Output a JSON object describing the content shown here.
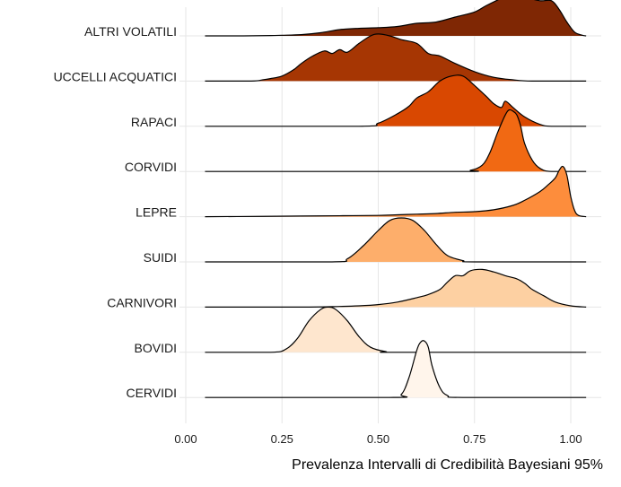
{
  "chart_data": {
    "type": "ridgeline",
    "xlabel": "Prevalenza Intervalli di Credibilità Bayesiani 95%",
    "xlim": [
      0,
      1.05
    ],
    "x_ticks": [
      0,
      0.25,
      0.5,
      0.75,
      1.0
    ],
    "x_tick_labels": [
      "0.00",
      "0.25",
      "0.50",
      "0.75",
      "1.00"
    ],
    "grid": true,
    "legend": "none",
    "x_range": [
      0.05,
      1.04
    ],
    "categories": [
      "ALTRI VOLATILI",
      "UCCELLI ACQUATICI",
      "RAPACI",
      "CORVIDI",
      "LEPRE",
      "SUIDI",
      "CARNIVORI",
      "BOVIDI",
      "CERVIDI"
    ],
    "series": [
      {
        "name": "ALTRI VOLATILI",
        "color": "#7f2704",
        "density": [
          [
            0.05,
            0
          ],
          [
            0.15,
            0
          ],
          [
            0.22,
            0.005
          ],
          [
            0.25,
            0.01
          ],
          [
            0.3,
            0.02
          ],
          [
            0.35,
            0.05
          ],
          [
            0.4,
            0.1
          ],
          [
            0.45,
            0.12
          ],
          [
            0.5,
            0.13
          ],
          [
            0.55,
            0.15
          ],
          [
            0.6,
            0.2
          ],
          [
            0.65,
            0.22
          ],
          [
            0.7,
            0.3
          ],
          [
            0.75,
            0.38
          ],
          [
            0.78,
            0.48
          ],
          [
            0.82,
            0.6
          ],
          [
            0.85,
            0.68
          ],
          [
            0.88,
            0.62
          ],
          [
            0.92,
            0.56
          ],
          [
            0.95,
            0.56
          ],
          [
            0.97,
            0.42
          ],
          [
            0.99,
            0.22
          ],
          [
            1.01,
            0.06
          ],
          [
            1.03,
            0.01
          ],
          [
            1.04,
            0
          ]
        ]
      },
      {
        "name": "UCCELLI ACQUATICI",
        "color": "#a63603",
        "density": [
          [
            0.05,
            0
          ],
          [
            0.17,
            0
          ],
          [
            0.2,
            0.02
          ],
          [
            0.22,
            0.04
          ],
          [
            0.25,
            0.08
          ],
          [
            0.28,
            0.18
          ],
          [
            0.3,
            0.28
          ],
          [
            0.33,
            0.4
          ],
          [
            0.36,
            0.48
          ],
          [
            0.38,
            0.44
          ],
          [
            0.4,
            0.5
          ],
          [
            0.42,
            0.46
          ],
          [
            0.45,
            0.6
          ],
          [
            0.48,
            0.72
          ],
          [
            0.5,
            0.75
          ],
          [
            0.53,
            0.72
          ],
          [
            0.56,
            0.66
          ],
          [
            0.6,
            0.6
          ],
          [
            0.63,
            0.44
          ],
          [
            0.66,
            0.4
          ],
          [
            0.7,
            0.28
          ],
          [
            0.75,
            0.15
          ],
          [
            0.8,
            0.06
          ],
          [
            0.85,
            0.02
          ],
          [
            0.9,
            0
          ],
          [
            1.04,
            0
          ]
        ]
      },
      {
        "name": "RAPACI",
        "color": "#d94801",
        "density": [
          [
            0.05,
            0
          ],
          [
            0.45,
            0
          ],
          [
            0.5,
            0.05
          ],
          [
            0.55,
            0.2
          ],
          [
            0.58,
            0.32
          ],
          [
            0.6,
            0.45
          ],
          [
            0.63,
            0.55
          ],
          [
            0.66,
            0.72
          ],
          [
            0.69,
            0.8
          ],
          [
            0.72,
            0.8
          ],
          [
            0.75,
            0.65
          ],
          [
            0.78,
            0.48
          ],
          [
            0.8,
            0.36
          ],
          [
            0.82,
            0.3
          ],
          [
            0.83,
            0.4
          ],
          [
            0.85,
            0.3
          ],
          [
            0.88,
            0.15
          ],
          [
            0.92,
            0.03
          ],
          [
            0.95,
            0
          ],
          [
            1.04,
            0
          ]
        ]
      },
      {
        "name": "CORVIDI",
        "color": "#f16913",
        "density": [
          [
            0.05,
            0
          ],
          [
            0.7,
            0
          ],
          [
            0.74,
            0.02
          ],
          [
            0.77,
            0.1
          ],
          [
            0.79,
            0.3
          ],
          [
            0.81,
            0.62
          ],
          [
            0.83,
            0.9
          ],
          [
            0.84,
            0.98
          ],
          [
            0.85,
            0.96
          ],
          [
            0.86,
            0.9
          ],
          [
            0.87,
            0.72
          ],
          [
            0.88,
            0.45
          ],
          [
            0.9,
            0.18
          ],
          [
            0.92,
            0.05
          ],
          [
            0.95,
            0
          ],
          [
            1.04,
            0
          ]
        ]
      },
      {
        "name": "LEPRE",
        "color": "#fd8d3c",
        "density": [
          [
            0.05,
            0
          ],
          [
            0.2,
            0.005
          ],
          [
            0.3,
            0.01
          ],
          [
            0.4,
            0.015
          ],
          [
            0.5,
            0.02
          ],
          [
            0.55,
            0.03
          ],
          [
            0.6,
            0.04
          ],
          [
            0.65,
            0.05
          ],
          [
            0.7,
            0.07
          ],
          [
            0.75,
            0.08
          ],
          [
            0.8,
            0.11
          ],
          [
            0.85,
            0.18
          ],
          [
            0.88,
            0.26
          ],
          [
            0.92,
            0.4
          ],
          [
            0.94,
            0.5
          ],
          [
            0.96,
            0.62
          ],
          [
            0.97,
            0.74
          ],
          [
            0.98,
            0.8
          ],
          [
            0.99,
            0.66
          ],
          [
            1.0,
            0.32
          ],
          [
            1.01,
            0.1
          ],
          [
            1.02,
            0.02
          ],
          [
            1.04,
            0
          ]
        ]
      },
      {
        "name": "SUIDI",
        "color": "#fdae6b",
        "density": [
          [
            0.05,
            0
          ],
          [
            0.38,
            0
          ],
          [
            0.42,
            0.05
          ],
          [
            0.46,
            0.25
          ],
          [
            0.5,
            0.5
          ],
          [
            0.53,
            0.66
          ],
          [
            0.56,
            0.7
          ],
          [
            0.59,
            0.66
          ],
          [
            0.62,
            0.5
          ],
          [
            0.65,
            0.28
          ],
          [
            0.68,
            0.1
          ],
          [
            0.72,
            0.02
          ],
          [
            0.75,
            0
          ],
          [
            1.04,
            0
          ]
        ]
      },
      {
        "name": "CARNIVORI",
        "color": "#fdd0a2",
        "density": [
          [
            0.05,
            0
          ],
          [
            0.3,
            0
          ],
          [
            0.4,
            0.01
          ],
          [
            0.45,
            0.02
          ],
          [
            0.5,
            0.04
          ],
          [
            0.55,
            0.08
          ],
          [
            0.6,
            0.15
          ],
          [
            0.63,
            0.2
          ],
          [
            0.66,
            0.28
          ],
          [
            0.68,
            0.4
          ],
          [
            0.7,
            0.5
          ],
          [
            0.72,
            0.5
          ],
          [
            0.74,
            0.58
          ],
          [
            0.77,
            0.6
          ],
          [
            0.8,
            0.56
          ],
          [
            0.83,
            0.5
          ],
          [
            0.86,
            0.45
          ],
          [
            0.88,
            0.38
          ],
          [
            0.9,
            0.28
          ],
          [
            0.93,
            0.18
          ],
          [
            0.96,
            0.08
          ],
          [
            1.0,
            0.02
          ],
          [
            1.04,
            0
          ]
        ]
      },
      {
        "name": "BOVIDI",
        "color": "#fee6ce",
        "density": [
          [
            0.05,
            0
          ],
          [
            0.22,
            0
          ],
          [
            0.26,
            0.05
          ],
          [
            0.29,
            0.22
          ],
          [
            0.32,
            0.5
          ],
          [
            0.35,
            0.68
          ],
          [
            0.37,
            0.72
          ],
          [
            0.39,
            0.68
          ],
          [
            0.42,
            0.5
          ],
          [
            0.45,
            0.25
          ],
          [
            0.48,
            0.08
          ],
          [
            0.52,
            0.01
          ],
          [
            0.55,
            0
          ],
          [
            1.04,
            0
          ]
        ]
      },
      {
        "name": "CERVIDI",
        "color": "#fff5eb",
        "density": [
          [
            0.05,
            0
          ],
          [
            0.53,
            0
          ],
          [
            0.56,
            0.05
          ],
          [
            0.58,
            0.32
          ],
          [
            0.6,
            0.75
          ],
          [
            0.61,
            0.88
          ],
          [
            0.62,
            0.9
          ],
          [
            0.63,
            0.8
          ],
          [
            0.64,
            0.5
          ],
          [
            0.66,
            0.16
          ],
          [
            0.68,
            0.03
          ],
          [
            0.72,
            0
          ],
          [
            1.04,
            0
          ]
        ]
      }
    ]
  }
}
